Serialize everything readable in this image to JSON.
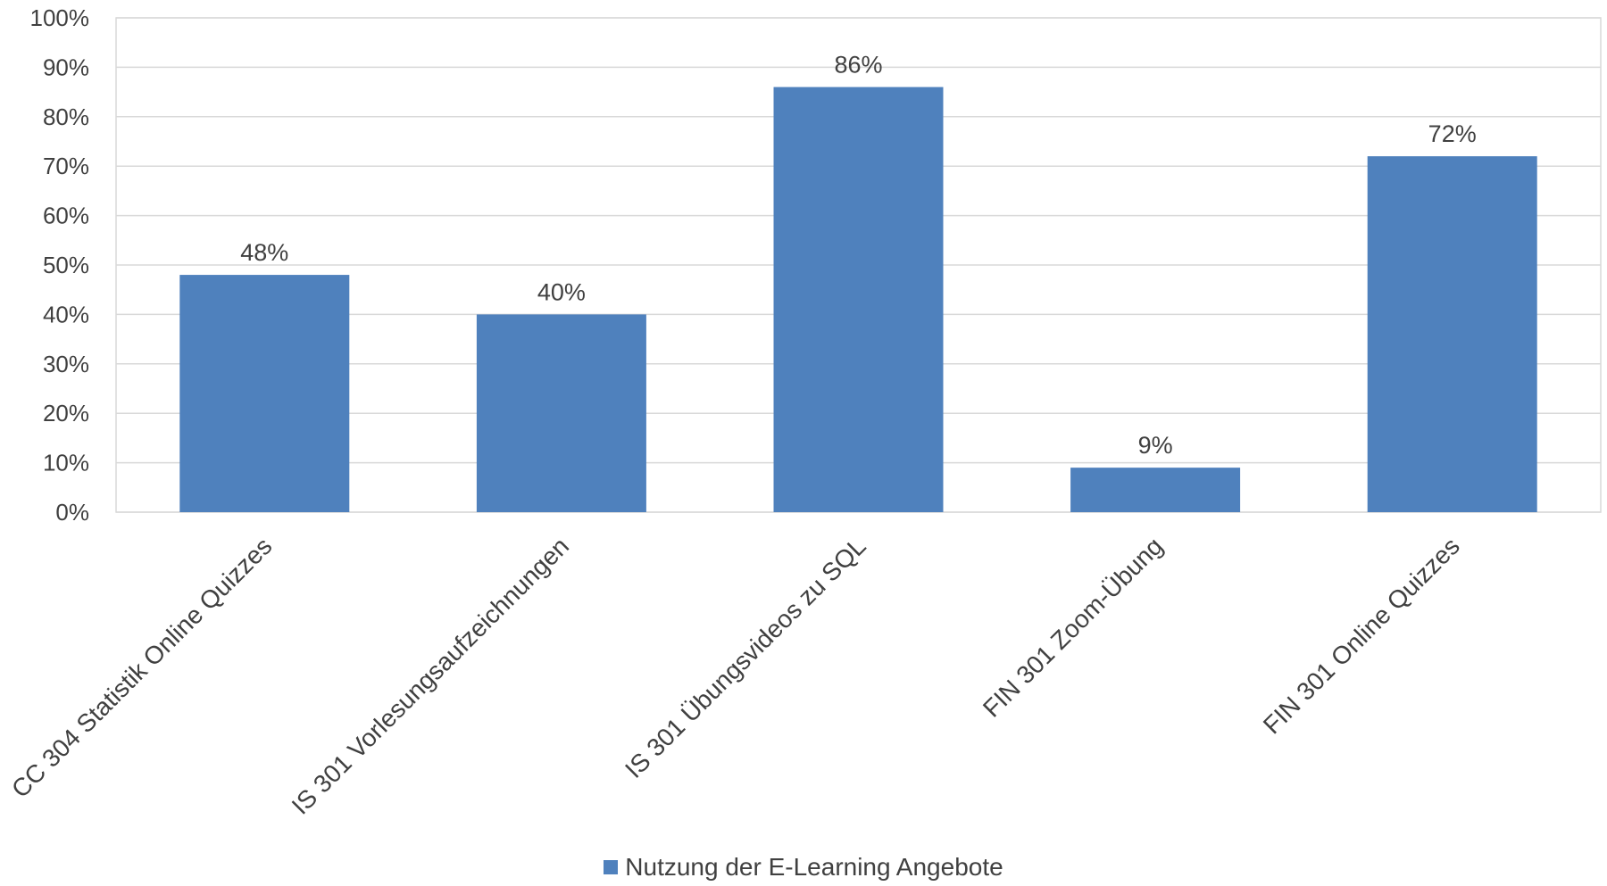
{
  "chart_data": {
    "type": "bar",
    "categories": [
      "CC 304 Statistik Online Quizzes",
      "IS 301 Vorlesungsaufzeichnungen",
      "IS 301 Übungsvideos zu SQL",
      "FIN 301 Zoom-Übung",
      "FIN 301 Online Quizzes"
    ],
    "series": [
      {
        "name": "Nutzung der E-Learning Angebote",
        "values": [
          48,
          40,
          86,
          9,
          72
        ],
        "data_labels": [
          "48%",
          "40%",
          "86%",
          "9%",
          "72%"
        ],
        "color": "#4F81BD"
      }
    ],
    "y_ticks": [
      "0%",
      "10%",
      "20%",
      "30%",
      "40%",
      "50%",
      "60%",
      "70%",
      "80%",
      "90%",
      "100%"
    ],
    "ylim": [
      0,
      100
    ],
    "grid": true,
    "legend_position": "bottom",
    "colors": {
      "bar": "#4F81BD",
      "grid": "#D9D9D9",
      "text": "#404040"
    }
  }
}
